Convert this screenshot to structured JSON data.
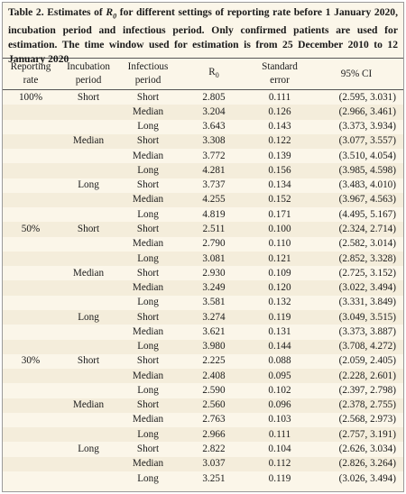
{
  "caption": {
    "prefix": "Table 2. Estimates of ",
    "r_letter": "R",
    "r_sub": "0",
    "suffix": " for different settings of reporting rate before 1 January 2020, incubation period and infectious period. Only confirmed patients are used for estimation. The time window used for estimation is from 25 December 2010 to 12 January 2020"
  },
  "headers": {
    "reporting": [
      "Reporting",
      "rate"
    ],
    "incubation": [
      "Incubation",
      "period"
    ],
    "infectious": [
      "Infectious",
      "period"
    ],
    "r0": "R",
    "r0_sub": "0",
    "se": [
      "Standard",
      "error"
    ],
    "ci": "95% CI"
  },
  "rows": [
    {
      "rate": "100%",
      "incub": "Short",
      "inf": "Short",
      "r0": "2.805",
      "se": "0.111",
      "ci": "(2.595, 3.031)"
    },
    {
      "rate": "",
      "incub": "",
      "inf": "Median",
      "r0": "3.204",
      "se": "0.126",
      "ci": "(2.966, 3.461)"
    },
    {
      "rate": "",
      "incub": "",
      "inf": "Long",
      "r0": "3.643",
      "se": "0.143",
      "ci": "(3.373, 3.934)"
    },
    {
      "rate": "",
      "incub": "Median",
      "inf": "Short",
      "r0": "3.308",
      "se": "0.122",
      "ci": "(3.077, 3.557)"
    },
    {
      "rate": "",
      "incub": "",
      "inf": "Median",
      "r0": "3.772",
      "se": "0.139",
      "ci": "(3.510, 4.054)"
    },
    {
      "rate": "",
      "incub": "",
      "inf": "Long",
      "r0": "4.281",
      "se": "0.156",
      "ci": "(3.985, 4.598)"
    },
    {
      "rate": "",
      "incub": "Long",
      "inf": "Short",
      "r0": "3.737",
      "se": "0.134",
      "ci": "(3.483, 4.010)"
    },
    {
      "rate": "",
      "incub": "",
      "inf": "Median",
      "r0": "4.255",
      "se": "0.152",
      "ci": "(3.967, 4.563)"
    },
    {
      "rate": "",
      "incub": "",
      "inf": "Long",
      "r0": "4.819",
      "se": "0.171",
      "ci": "(4.495, 5.167)"
    },
    {
      "rate": "50%",
      "incub": "Short",
      "inf": "Short",
      "r0": "2.511",
      "se": "0.100",
      "ci": "(2.324, 2.714)"
    },
    {
      "rate": "",
      "incub": "",
      "inf": "Median",
      "r0": "2.790",
      "se": "0.110",
      "ci": "(2.582, 3.014)"
    },
    {
      "rate": "",
      "incub": "",
      "inf": "Long",
      "r0": "3.081",
      "se": "0.121",
      "ci": "(2.852, 3.328)"
    },
    {
      "rate": "",
      "incub": "Median",
      "inf": "Short",
      "r0": "2.930",
      "se": "0.109",
      "ci": "(2.725, 3.152)"
    },
    {
      "rate": "",
      "incub": "",
      "inf": "Median",
      "r0": "3.249",
      "se": "0.120",
      "ci": "(3.022, 3.494)"
    },
    {
      "rate": "",
      "incub": "",
      "inf": "Long",
      "r0": "3.581",
      "se": "0.132",
      "ci": "(3.331, 3.849)"
    },
    {
      "rate": "",
      "incub": "Long",
      "inf": "Short",
      "r0": "3.274",
      "se": "0.119",
      "ci": "(3.049, 3.515)"
    },
    {
      "rate": "",
      "incub": "",
      "inf": "Median",
      "r0": "3.621",
      "se": "0.131",
      "ci": "(3.373, 3.887)"
    },
    {
      "rate": "",
      "incub": "",
      "inf": "Long",
      "r0": "3.980",
      "se": "0.144",
      "ci": "(3.708, 4.272)"
    },
    {
      "rate": "30%",
      "incub": "Short",
      "inf": "Short",
      "r0": "2.225",
      "se": "0.088",
      "ci": "(2.059, 2.405)"
    },
    {
      "rate": "",
      "incub": "",
      "inf": "Median",
      "r0": "2.408",
      "se": "0.095",
      "ci": "(2.228, 2.601)"
    },
    {
      "rate": "",
      "incub": "",
      "inf": "Long",
      "r0": "2.590",
      "se": "0.102",
      "ci": "(2.397, 2.798)"
    },
    {
      "rate": "",
      "incub": "Median",
      "inf": "Short",
      "r0": "2.560",
      "se": "0.096",
      "ci": "(2.378, 2.755)"
    },
    {
      "rate": "",
      "incub": "",
      "inf": "Median",
      "r0": "2.763",
      "se": "0.103",
      "ci": "(2.568, 2.973)"
    },
    {
      "rate": "",
      "incub": "",
      "inf": "Long",
      "r0": "2.966",
      "se": "0.111",
      "ci": "(2.757, 3.191)"
    },
    {
      "rate": "",
      "incub": "Long",
      "inf": "Short",
      "r0": "2.822",
      "se": "0.104",
      "ci": "(2.626, 3.034)"
    },
    {
      "rate": "",
      "incub": "",
      "inf": "Median",
      "r0": "3.037",
      "se": "0.112",
      "ci": "(2.826, 3.264)"
    },
    {
      "rate": "",
      "incub": "",
      "inf": "Long",
      "r0": "3.251",
      "se": "0.119",
      "ci": "(3.026, 3.494)"
    }
  ]
}
